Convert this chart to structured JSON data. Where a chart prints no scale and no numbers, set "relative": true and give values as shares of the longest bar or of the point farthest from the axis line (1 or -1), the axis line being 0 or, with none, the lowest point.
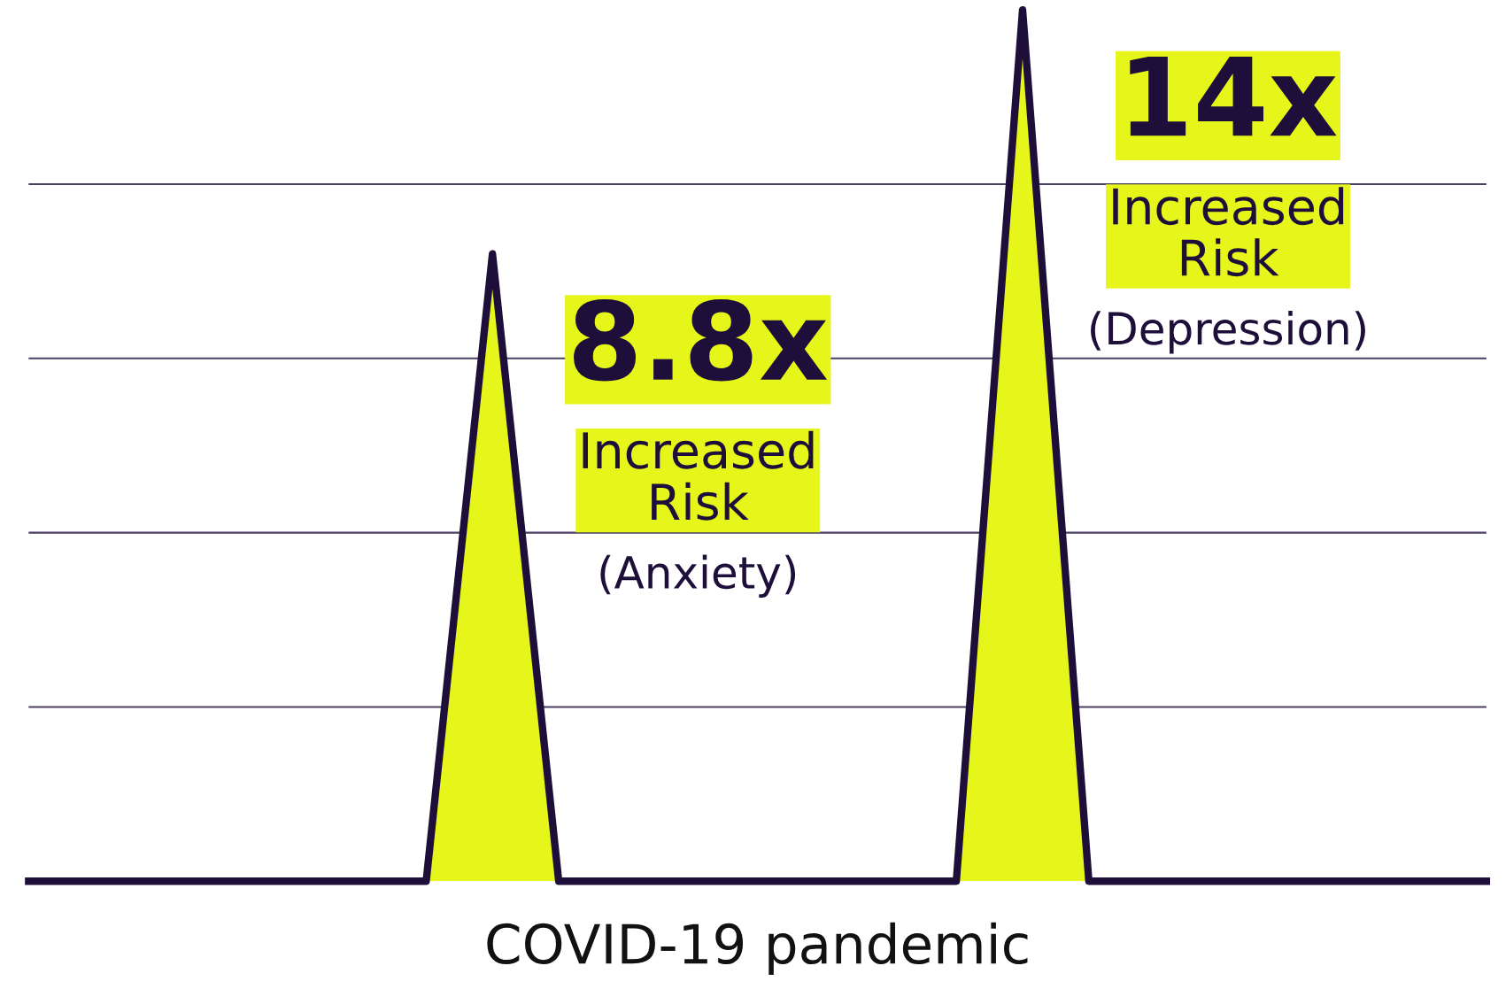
{
  "chart_data": {
    "type": "area",
    "relative": true,
    "xlabel": "COVID-19 pandemic",
    "categories": [
      null,
      null,
      null,
      null,
      null,
      null,
      null,
      null,
      null,
      null,
      null,
      null,
      null,
      null,
      null,
      null,
      null,
      null,
      null,
      null,
      null,
      null,
      null
    ],
    "series": [
      {
        "color": "#e6f51a",
        "values": [
          0,
          0,
          0,
          0,
          0,
          0,
          0,
          0.72,
          0,
          0,
          0,
          0,
          0,
          0,
          0,
          1,
          0,
          0,
          0,
          0,
          0,
          0,
          0
        ]
      }
    ],
    "grid": "y",
    "annotations": [
      "8.8x",
      "Increased\nRisk",
      "(Anxiety)",
      "14x",
      "Increased\nRisk",
      "(Depression)"
    ]
  }
}
